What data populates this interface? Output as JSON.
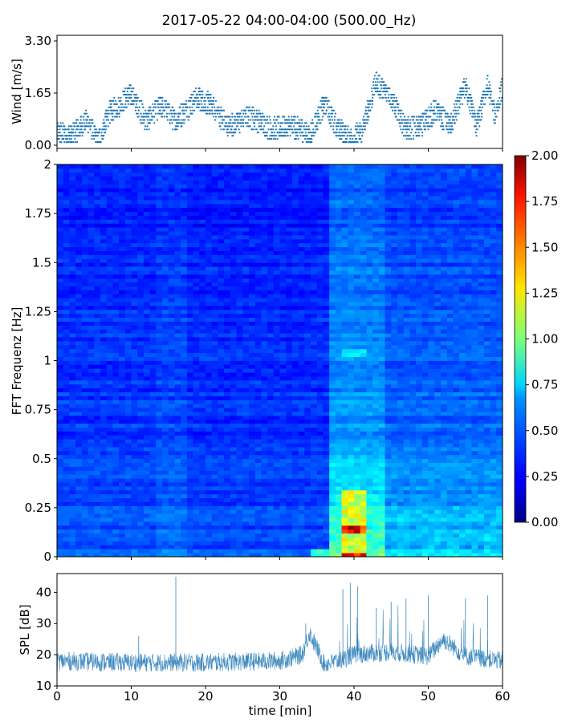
{
  "title": "2017-05-22 04:00-04:00 (500.00_Hz)",
  "chart_data": [
    {
      "type": "scatter",
      "name": "wind",
      "ylabel": "Wind [m/s]",
      "xlabel": "",
      "xlim": [
        0,
        60
      ],
      "ylim": [
        0.0,
        3.3
      ],
      "yticks": [
        0.0,
        1.65,
        3.3
      ],
      "yticklabels": [
        "0.00",
        "1.65",
        "3.30"
      ],
      "marker_color": "#1f77b4",
      "x_step_min": 0.1,
      "segments": [
        {
          "x": [
            0,
            2
          ],
          "y": [
            0.4,
            0.3
          ]
        },
        {
          "x": [
            2,
            4
          ],
          "y": [
            0.3,
            0.8
          ]
        },
        {
          "x": [
            4,
            5.5
          ],
          "y": [
            0.8,
            0.1
          ]
        },
        {
          "x": [
            5.5,
            7
          ],
          "y": [
            0.1,
            1.0
          ]
        },
        {
          "x": [
            7,
            10
          ],
          "y": [
            1.0,
            1.6
          ]
        },
        {
          "x": [
            10,
            12
          ],
          "y": [
            1.6,
            0.8
          ]
        },
        {
          "x": [
            12,
            14
          ],
          "y": [
            0.8,
            1.2
          ]
        },
        {
          "x": [
            14,
            16
          ],
          "y": [
            1.2,
            0.8
          ]
        },
        {
          "x": [
            16,
            19
          ],
          "y": [
            0.8,
            1.5
          ]
        },
        {
          "x": [
            19,
            21
          ],
          "y": [
            1.5,
            1.2
          ]
        },
        {
          "x": [
            21,
            23
          ],
          "y": [
            1.2,
            0.6
          ]
        },
        {
          "x": [
            23,
            26
          ],
          "y": [
            0.6,
            0.9
          ]
        },
        {
          "x": [
            26,
            29
          ],
          "y": [
            0.9,
            0.5
          ]
        },
        {
          "x": [
            29,
            31
          ],
          "y": [
            0.5,
            0.6
          ]
        },
        {
          "x": [
            31,
            33
          ],
          "y": [
            0.6,
            0.5
          ]
        },
        {
          "x": [
            33,
            34
          ],
          "y": [
            0.5,
            0.3
          ]
        },
        {
          "x": [
            34,
            36
          ],
          "y": [
            0.3,
            1.3
          ]
        },
        {
          "x": [
            36,
            38
          ],
          "y": [
            1.3,
            0.5
          ]
        },
        {
          "x": [
            38,
            39.5
          ],
          "y": [
            0.5,
            0.2
          ]
        },
        {
          "x": [
            39.5,
            41
          ],
          "y": [
            0.2,
            0.4
          ]
        },
        {
          "x": [
            41,
            43
          ],
          "y": [
            0.4,
            2.0
          ]
        },
        {
          "x": [
            43,
            45
          ],
          "y": [
            2.0,
            1.5
          ]
        },
        {
          "x": [
            45,
            47
          ],
          "y": [
            1.5,
            0.5
          ]
        },
        {
          "x": [
            47,
            49
          ],
          "y": [
            0.5,
            0.6
          ]
        },
        {
          "x": [
            49,
            51
          ],
          "y": [
            0.6,
            1.1
          ]
        },
        {
          "x": [
            51,
            53
          ],
          "y": [
            1.1,
            0.6
          ]
        },
        {
          "x": [
            53,
            55
          ],
          "y": [
            0.6,
            1.9
          ]
        },
        {
          "x": [
            55,
            56.5
          ],
          "y": [
            1.9,
            0.6
          ]
        },
        {
          "x": [
            56.5,
            58
          ],
          "y": [
            0.6,
            1.9
          ]
        },
        {
          "x": [
            58,
            59
          ],
          "y": [
            1.9,
            0.9
          ]
        },
        {
          "x": [
            59,
            60
          ],
          "y": [
            0.9,
            1.9
          ]
        }
      ]
    },
    {
      "type": "heatmap",
      "name": "fft-spectrogram",
      "ylabel": "FFT Frequenz [Hz]",
      "xlabel": "",
      "xlim": [
        0,
        60
      ],
      "ylim": [
        0,
        2
      ],
      "yticks": [
        0,
        0.25,
        0.5,
        0.75,
        1,
        1.25,
        1.5,
        1.75,
        2
      ],
      "yticklabels": [
        "0",
        "0.25",
        "0.5",
        "0.75",
        "1",
        "1.25",
        "1.5",
        "1.75",
        "2"
      ],
      "colormap": "jet",
      "clim": [
        0.0,
        2.0
      ],
      "colorbar_ticks": [
        "0.00",
        "0.25",
        "0.50",
        "0.75",
        "1.00",
        "1.25",
        "1.50",
        "1.75",
        "2.00"
      ],
      "grid_cols": 72,
      "grid_rows": 100,
      "segment_mean_intensity": [
        {
          "x": [
            0,
            13.5
          ],
          "value": 0.2
        },
        {
          "x": [
            13.5,
            17.5
          ],
          "value": 0.25
        },
        {
          "x": [
            17.5,
            37
          ],
          "value": 0.18
        },
        {
          "x": [
            37,
            44
          ],
          "value": 0.45
        },
        {
          "x": [
            44,
            60
          ],
          "value": 0.32
        }
      ],
      "hot_spots": [
        {
          "x": [
            38,
            42
          ],
          "f": [
            0.0,
            0.35
          ],
          "value": 1.2
        },
        {
          "x": [
            38,
            42
          ],
          "f": [
            0.12,
            0.16
          ],
          "value": 1.9
        },
        {
          "x": [
            38,
            42
          ],
          "f": [
            0.0,
            0.02
          ],
          "value": 1.9
        },
        {
          "x": [
            34,
            37
          ],
          "f": [
            0.0,
            0.05
          ],
          "value": 0.8
        },
        {
          "x": [
            38,
            42
          ],
          "f": [
            1.02,
            1.06
          ],
          "value": 0.7
        }
      ]
    },
    {
      "type": "line",
      "name": "spl",
      "xlabel": "time [min]",
      "ylabel": "SPL [dB]",
      "xlim": [
        0,
        60
      ],
      "ylim": [
        10,
        46
      ],
      "xticks": [
        0,
        10,
        20,
        30,
        40,
        50,
        60
      ],
      "yticks": [
        10,
        20,
        30,
        40
      ],
      "line_color": "#1f77b4",
      "baseline": {
        "x": [
          0,
          10,
          20,
          30,
          33,
          34,
          36,
          38,
          40,
          45,
          50,
          52,
          55,
          60
        ],
        "y": [
          18,
          17.5,
          17.5,
          18,
          20,
          27,
          17,
          18,
          20,
          21,
          19.5,
          25,
          19.5,
          18
        ]
      },
      "spikes": [
        {
          "x": 11,
          "y": 26
        },
        {
          "x": 16,
          "y": 45
        },
        {
          "x": 33.5,
          "y": 30
        },
        {
          "x": 38.5,
          "y": 41
        },
        {
          "x": 39.5,
          "y": 43
        },
        {
          "x": 40.5,
          "y": 42
        },
        {
          "x": 43,
          "y": 35
        },
        {
          "x": 45,
          "y": 37
        },
        {
          "x": 47,
          "y": 38
        },
        {
          "x": 50,
          "y": 39
        },
        {
          "x": 55,
          "y": 38
        },
        {
          "x": 58,
          "y": 39
        }
      ]
    }
  ]
}
